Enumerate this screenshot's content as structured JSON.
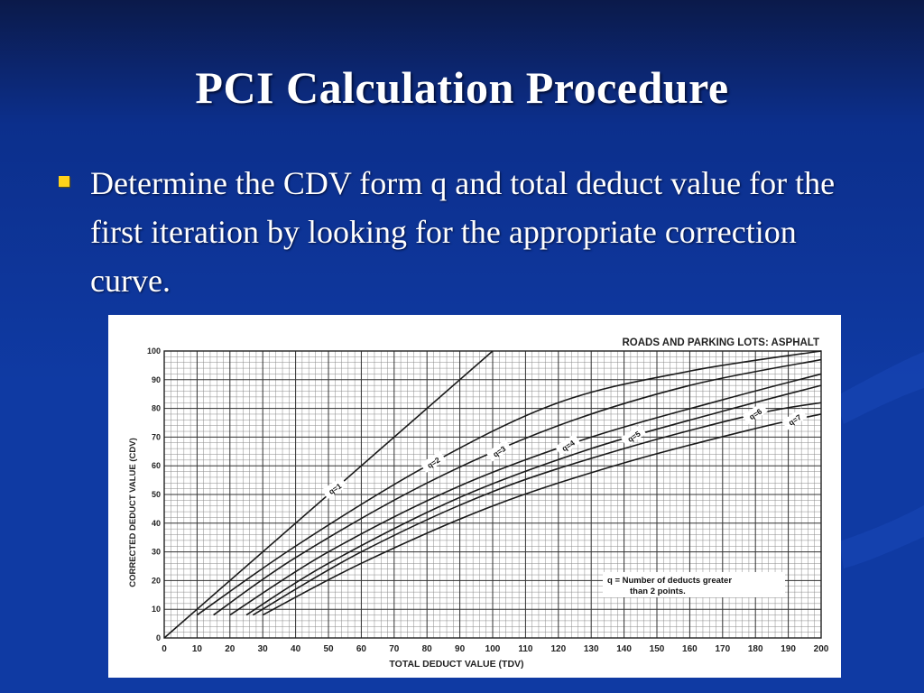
{
  "slide": {
    "title": "PCI Calculation Procedure",
    "bullet_text": "Determine the CDV form q and total deduct value for the first iteration by looking for the appropriate correction curve.",
    "bullet_color": "#ffd21a",
    "background_color": "#0f3aa3"
  },
  "chart_data": {
    "type": "line",
    "title": "ROADS AND PARKING LOTS:  ASPHALT",
    "xlabel": "TOTAL DEDUCT VALUE (TDV)",
    "ylabel": "CORRECTED DEDUCT VALUE (CDV)",
    "xlim": [
      0,
      200
    ],
    "ylim": [
      0,
      100
    ],
    "xticks": [
      0,
      10,
      20,
      30,
      40,
      50,
      60,
      70,
      80,
      90,
      100,
      110,
      120,
      130,
      140,
      150,
      160,
      170,
      180,
      190,
      200
    ],
    "yticks": [
      0,
      10,
      20,
      30,
      40,
      50,
      60,
      70,
      80,
      90,
      100
    ],
    "grid": true,
    "note": "q = Number of deducts greater than 2 points.",
    "series": [
      {
        "name": "q=1",
        "x": [
          0,
          100
        ],
        "y": [
          0,
          100
        ]
      },
      {
        "name": "q=2",
        "x": [
          10,
          40,
          80,
          120,
          160,
          200
        ],
        "y": [
          8,
          32,
          60,
          82,
          93,
          100
        ]
      },
      {
        "name": "q=3",
        "x": [
          15,
          40,
          80,
          120,
          160,
          200
        ],
        "y": [
          8,
          28,
          54,
          74,
          88,
          97
        ]
      },
      {
        "name": "q=4",
        "x": [
          20,
          50,
          90,
          130,
          170,
          200
        ],
        "y": [
          8,
          30,
          53,
          70,
          83,
          92
        ]
      },
      {
        "name": "q=5",
        "x": [
          25,
          50,
          90,
          130,
          170,
          200
        ],
        "y": [
          8,
          26,
          49,
          66,
          79,
          88
        ]
      },
      {
        "name": "q=6",
        "x": [
          27,
          60,
          100,
          140,
          180,
          200
        ],
        "y": [
          8,
          30,
          51,
          66,
          78,
          82
        ]
      },
      {
        "name": "q=7",
        "x": [
          30,
          60,
          100,
          140,
          180,
          200
        ],
        "y": [
          8,
          26,
          46,
          61,
          73,
          78
        ]
      }
    ]
  }
}
